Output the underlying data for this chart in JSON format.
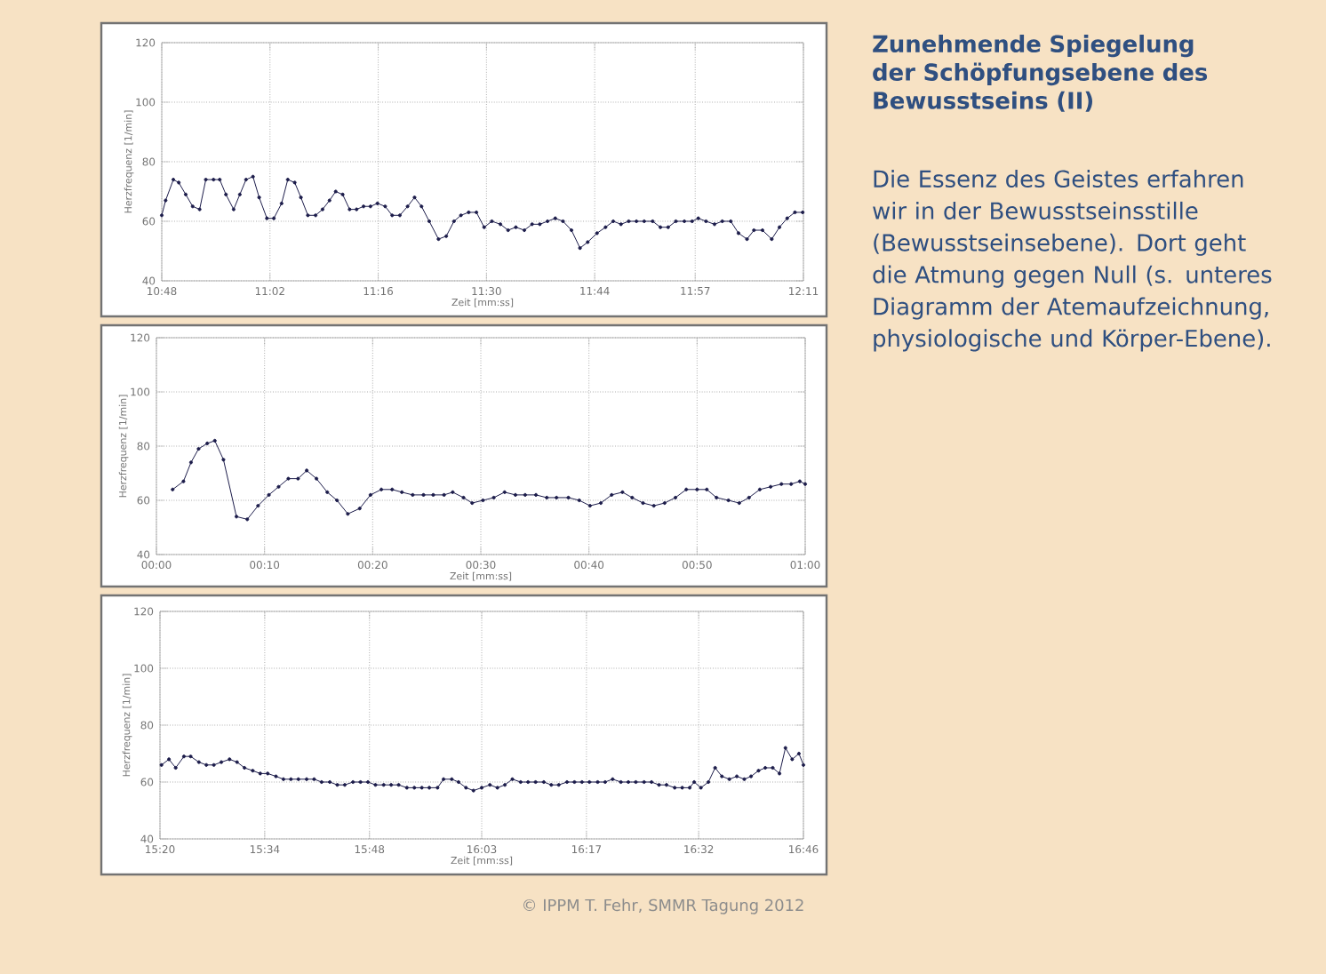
{
  "chart_data": [
    {
      "type": "line",
      "xlabel": "Zeit [mm:ss]",
      "ylabel": "Herzfrequenz [1/min]",
      "color": "#1c1c4a",
      "marker": "circle",
      "line_style": "solid",
      "grid": true,
      "ylim": [
        40,
        120
      ],
      "yticks": [
        40,
        60,
        80,
        100,
        120
      ],
      "xlim": [
        648,
        731
      ],
      "xticks": [
        {
          "value": 648,
          "label": "10:48"
        },
        {
          "value": 662,
          "label": "11:02"
        },
        {
          "value": 676,
          "label": "11:16"
        },
        {
          "value": 690,
          "label": "11:30"
        },
        {
          "value": 704,
          "label": "11:44"
        },
        {
          "value": 717,
          "label": "11:57"
        },
        {
          "value": 731,
          "label": "12:11"
        }
      ],
      "x": [
        648,
        648.5,
        649.5,
        650.2,
        651.1,
        652.0,
        652.9,
        653.7,
        654.7,
        655.5,
        656.3,
        657.3,
        658.1,
        658.9,
        659.8,
        660.6,
        661.6,
        662.5,
        663.5,
        664.3,
        665.2,
        666.0,
        666.9,
        667.9,
        668.8,
        669.7,
        670.5,
        671.4,
        672.3,
        673.2,
        674.1,
        675.0,
        675.9,
        676.9,
        677.8,
        678.8,
        679.8,
        680.7,
        681.6,
        682.6,
        683.8,
        684.8,
        685.8,
        686.7,
        687.7,
        688.7,
        689.7,
        690.7,
        691.8,
        692.8,
        693.8,
        694.9,
        695.9,
        696.9,
        697.9,
        698.9,
        699.9,
        701.0,
        702.1,
        703.1,
        704.3,
        705.4,
        706.4,
        707.4,
        708.4,
        709.4,
        710.4,
        711.5,
        712.5,
        713.5,
        714.5,
        715.6,
        716.6,
        717.4,
        718.4,
        719.5,
        720.5,
        721.6,
        722.6,
        723.7,
        724.6,
        725.7,
        726.9,
        727.9,
        728.9,
        729.9,
        730.9
      ],
      "values": [
        62,
        67,
        74,
        73,
        69,
        65,
        64,
        74,
        74,
        74,
        69,
        64,
        69,
        74,
        75,
        68,
        61,
        61,
        66,
        74,
        73,
        68,
        62,
        62,
        64,
        67,
        70,
        69,
        64,
        64,
        65,
        65,
        66,
        65,
        62,
        62,
        65,
        68,
        65,
        60,
        54,
        55,
        60,
        62,
        63,
        63,
        58,
        60,
        59,
        57,
        58,
        57,
        59,
        59,
        60,
        61,
        60,
        57,
        51,
        53,
        56,
        58,
        60,
        59,
        60,
        60,
        60,
        60,
        58,
        58,
        60,
        60,
        60,
        61,
        60,
        59,
        60,
        60,
        56,
        54,
        57,
        57,
        54,
        58,
        61,
        63,
        63
      ]
    },
    {
      "type": "line",
      "xlabel": "Zeit [mm:ss]",
      "ylabel": "Herzfrequenz [1/min]",
      "color": "#1c1c4a",
      "marker": "circle",
      "line_style": "solid",
      "grid": true,
      "ylim": [
        40,
        120
      ],
      "yticks": [
        40,
        60,
        80,
        100,
        120
      ],
      "xlim": [
        0,
        60
      ],
      "xticks": [
        {
          "value": 0,
          "label": "00:00"
        },
        {
          "value": 10,
          "label": "00:10"
        },
        {
          "value": 20,
          "label": "00:20"
        },
        {
          "value": 30,
          "label": "00:30"
        },
        {
          "value": 40,
          "label": "00:40"
        },
        {
          "value": 50,
          "label": "00:50"
        },
        {
          "value": 60,
          "label": "01:00"
        }
      ],
      "x": [
        1.5,
        2.5,
        3.2,
        3.9,
        4.7,
        5.4,
        6.2,
        7.4,
        8.4,
        9.4,
        10.4,
        11.3,
        12.2,
        13.1,
        13.9,
        14.8,
        15.8,
        16.7,
        17.7,
        18.8,
        19.8,
        20.8,
        21.8,
        22.7,
        23.7,
        24.7,
        25.6,
        26.6,
        27.4,
        28.4,
        29.2,
        30.2,
        31.2,
        32.2,
        33.2,
        34.1,
        35.1,
        36.1,
        37.0,
        38.1,
        39.1,
        40.1,
        41.1,
        42.1,
        43.1,
        44.0,
        45.0,
        46.0,
        47.0,
        48.0,
        49.0,
        50.0,
        50.9,
        51.8,
        52.9,
        53.9,
        54.8,
        55.8,
        56.8,
        57.8,
        58.7,
        59.5,
        60.0
      ],
      "values": [
        64,
        67,
        74,
        79,
        81,
        82,
        75,
        54,
        53,
        58,
        62,
        65,
        68,
        68,
        71,
        68,
        63,
        60,
        55,
        57,
        62,
        64,
        64,
        63,
        62,
        62,
        62,
        62,
        63,
        61,
        59,
        60,
        61,
        63,
        62,
        62,
        62,
        61,
        61,
        61,
        60,
        58,
        59,
        62,
        63,
        61,
        59,
        58,
        59,
        61,
        64,
        64,
        64,
        61,
        60,
        59,
        61,
        64,
        65,
        66,
        66,
        67,
        66
      ]
    },
    {
      "type": "line",
      "xlabel": "Zeit [mm:ss]",
      "ylabel": "Herzfrequenz [1/min]",
      "color": "#1c1c4a",
      "marker": "circle",
      "line_style": "solid",
      "grid": true,
      "ylim": [
        40,
        120
      ],
      "yticks": [
        40,
        60,
        80,
        100,
        120
      ],
      "xlim": [
        920,
        1006
      ],
      "xticks": [
        {
          "value": 920,
          "label": "15:20"
        },
        {
          "value": 934,
          "label": "15:34"
        },
        {
          "value": 948,
          "label": "15:48"
        },
        {
          "value": 963,
          "label": "16:03"
        },
        {
          "value": 977,
          "label": "16:17"
        },
        {
          "value": 992,
          "label": "16:32"
        },
        {
          "value": 1006,
          "label": "16:46"
        }
      ],
      "x": [
        920.2,
        921.2,
        922.1,
        923.2,
        924.1,
        925.2,
        926.2,
        927.2,
        928.2,
        929.3,
        930.3,
        931.3,
        932.4,
        933.4,
        934.4,
        935.5,
        936.5,
        937.5,
        938.5,
        939.6,
        940.6,
        941.6,
        942.7,
        943.7,
        944.7,
        945.8,
        946.8,
        947.8,
        948.8,
        949.9,
        950.9,
        951.9,
        953.0,
        954.0,
        955.0,
        956.0,
        957.1,
        957.9,
        959.0,
        959.9,
        960.9,
        961.9,
        963.0,
        964.1,
        965.1,
        966.1,
        967.1,
        968.2,
        969.2,
        970.2,
        971.3,
        972.3,
        973.3,
        974.4,
        975.4,
        976.4,
        977.4,
        978.5,
        979.5,
        980.5,
        981.6,
        982.6,
        983.6,
        984.7,
        985.7,
        986.7,
        987.7,
        988.8,
        989.8,
        990.8,
        991.4,
        992.3,
        993.3,
        994.2,
        995.1,
        996.1,
        997.1,
        998.1,
        999.0,
        1000.0,
        1000.9,
        1001.9,
        1002.8,
        1003.6,
        1004.5,
        1005.4,
        1006.0
      ],
      "values": [
        66,
        68,
        65,
        69,
        69,
        67,
        66,
        66,
        67,
        68,
        67,
        65,
        64,
        63,
        63,
        62,
        61,
        61,
        61,
        61,
        61,
        60,
        60,
        59,
        59,
        60,
        60,
        60,
        59,
        59,
        59,
        59,
        58,
        58,
        58,
        58,
        58,
        61,
        61,
        60,
        58,
        57,
        58,
        59,
        58,
        59,
        61,
        60,
        60,
        60,
        60,
        59,
        59,
        60,
        60,
        60,
        60,
        60,
        60,
        61,
        60,
        60,
        60,
        60,
        60,
        59,
        59,
        58,
        58,
        58,
        60,
        58,
        60,
        65,
        62,
        61,
        62,
        61,
        62,
        64,
        65,
        65,
        63,
        72,
        68,
        70,
        66
      ]
    },
    {
      "type": "other",
      "title": "Zunehmende Spiegelung der Schöpfungsebene des Bewusstseins (II)",
      "subtitle": "Die Essenz des Geistes erfahren wir in der Bewusstseinsstille (Bewusstseinsebene). Dort geht die Atmung gegen Null (s. unteres Diagramm der Atemaufzeichnung, physiologische und Körper-Ebene).",
      "annotations": [
        "© IPPM T. Fehr, SMMR Tagung 2012"
      ]
    }
  ]
}
